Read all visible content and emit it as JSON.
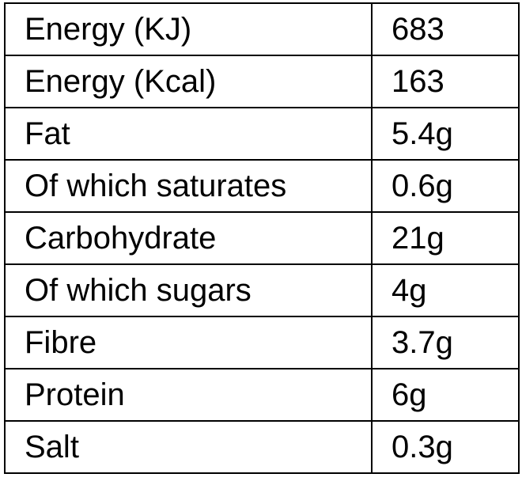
{
  "nutrition_table": {
    "rows": [
      {
        "label": "Energy (KJ)",
        "value": "683"
      },
      {
        "label": "Energy (Kcal)",
        "value": "163"
      },
      {
        "label": "Fat",
        "value": "5.4g"
      },
      {
        "label": "Of which saturates",
        "value": "0.6g"
      },
      {
        "label": "Carbohydrate",
        "value": "21g"
      },
      {
        "label": "Of which sugars",
        "value": "4g"
      },
      {
        "label": "Fibre",
        "value": "3.7g"
      },
      {
        "label": "Protein",
        "value": "6g"
      },
      {
        "label": "Salt",
        "value": "0.3g"
      }
    ]
  },
  "colors": {
    "border": "#000000",
    "text": "#000000",
    "background": "#ffffff"
  }
}
